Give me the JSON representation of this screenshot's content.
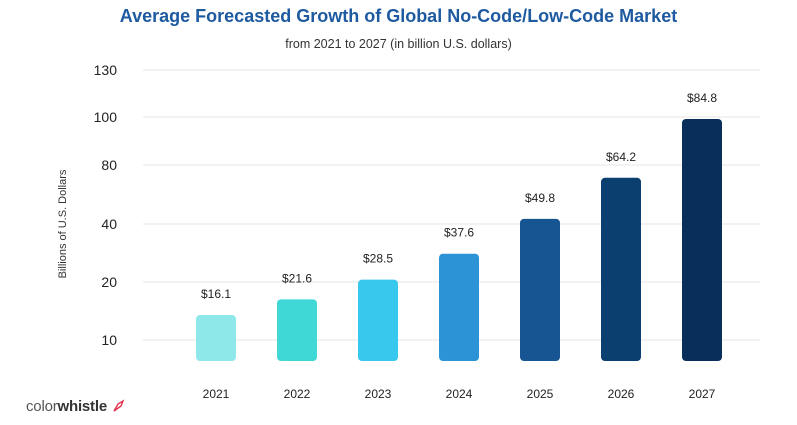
{
  "chart_data": {
    "type": "bar",
    "title": "Average Forecasted Growth of Global No-Code/Low-Code  Market",
    "subtitle": "from 2021 to 2027 (in billion U.S. dollars)",
    "xlabel": "",
    "ylabel": "Billions of U.S. Dollars",
    "yticks": [
      "130",
      "100",
      "80",
      "40",
      "20",
      "10"
    ],
    "categories": [
      "2021",
      "2022",
      "2023",
      "2024",
      "2025",
      "2026",
      "2027"
    ],
    "values": [
      16.1,
      21.6,
      28.5,
      37.6,
      49.8,
      64.2,
      84.8
    ],
    "labels": [
      "$16.1",
      "$21.6",
      "$28.5",
      "$37.6",
      "$49.8",
      "$64.2",
      "$84.8"
    ],
    "colors": [
      "#8ee8ea",
      "#3fd8d7",
      "#38c8ed",
      "#2b93d6",
      "#165591",
      "#0b3f70",
      "#082f5a"
    ],
    "grid": true
  },
  "brand": {
    "logo_part1": "color",
    "logo_part2": "whistle",
    "logo_icon": "pen-nib-icon"
  }
}
